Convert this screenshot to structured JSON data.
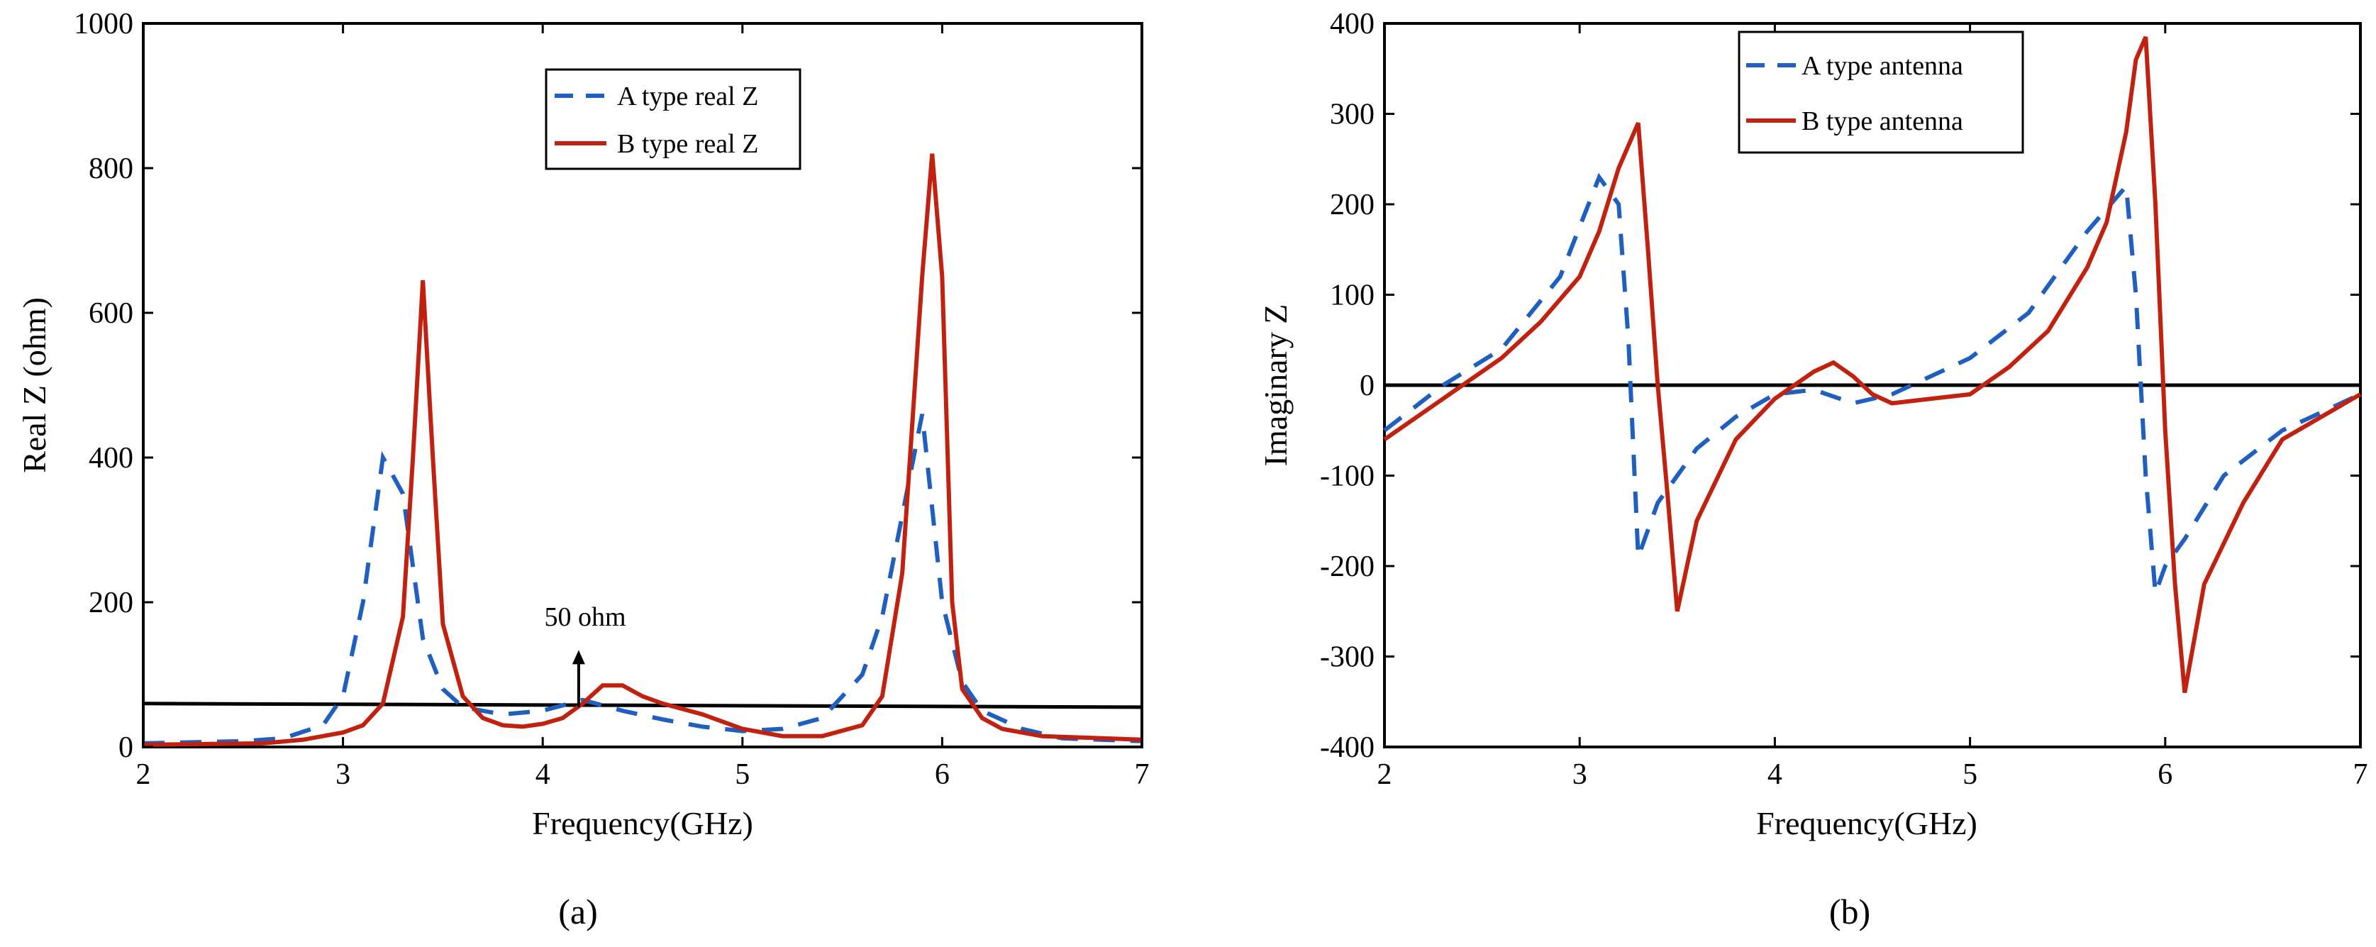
{
  "colors": {
    "series_a": "#1f5fbf",
    "series_b": "#c0220f",
    "axis": "#000000"
  },
  "chart_data": [
    {
      "type": "line",
      "panel_label": "(a)",
      "xlabel": "Frequency(GHz)",
      "ylabel": "Real Z (ohm)",
      "xlim": [
        2,
        7
      ],
      "ylim": [
        0,
        1000
      ],
      "xticks": [
        2,
        3,
        4,
        5,
        6,
        7
      ],
      "yticks": [
        0,
        200,
        400,
        600,
        800,
        1000
      ],
      "legend": {
        "position": "top-center",
        "entries": [
          "A type real Z",
          "B type real Z"
        ]
      },
      "reference_line": {
        "y_start": 60,
        "y_end": 55
      },
      "annotation": {
        "text": "50 ohm",
        "x": 4.18,
        "y_from": 55,
        "y_to": 130
      },
      "series": [
        {
          "name": "A type real Z",
          "style": "dashed",
          "x": [
            2.0,
            2.5,
            2.7,
            2.9,
            3.0,
            3.1,
            3.2,
            3.3,
            3.4,
            3.5,
            3.6,
            3.8,
            4.0,
            4.2,
            4.4,
            4.6,
            4.8,
            5.0,
            5.2,
            5.4,
            5.6,
            5.7,
            5.8,
            5.9,
            6.0,
            6.1,
            6.2,
            6.4,
            6.6,
            7.0
          ],
          "y": [
            5,
            8,
            12,
            30,
            70,
            200,
            400,
            350,
            150,
            80,
            55,
            45,
            50,
            65,
            50,
            38,
            28,
            22,
            25,
            40,
            100,
            180,
            320,
            460,
            200,
            90,
            50,
            25,
            12,
            8
          ]
        },
        {
          "name": "B type real Z",
          "style": "solid",
          "x": [
            2.0,
            2.6,
            2.8,
            3.0,
            3.1,
            3.2,
            3.3,
            3.35,
            3.4,
            3.45,
            3.5,
            3.6,
            3.7,
            3.8,
            3.9,
            4.0,
            4.1,
            4.2,
            4.3,
            4.4,
            4.5,
            4.6,
            4.8,
            5.0,
            5.2,
            5.4,
            5.6,
            5.7,
            5.8,
            5.9,
            5.95,
            6.0,
            6.05,
            6.1,
            6.2,
            6.3,
            6.5,
            7.0
          ],
          "y": [
            3,
            5,
            10,
            20,
            30,
            60,
            180,
            400,
            645,
            400,
            170,
            70,
            40,
            30,
            28,
            32,
            40,
            60,
            85,
            85,
            70,
            60,
            45,
            25,
            15,
            15,
            30,
            70,
            240,
            650,
            820,
            650,
            200,
            80,
            40,
            25,
            15,
            10
          ]
        }
      ]
    },
    {
      "type": "line",
      "panel_label": "(b)",
      "xlabel": "Frequency(GHz)",
      "ylabel": "Imaginary Z",
      "xlim": [
        2,
        7
      ],
      "ylim": [
        -400,
        400
      ],
      "xticks": [
        2,
        3,
        4,
        5,
        6,
        7
      ],
      "yticks": [
        -400,
        -300,
        -200,
        -100,
        0,
        100,
        200,
        300,
        400
      ],
      "legend": {
        "position": "top-left",
        "entries": [
          "A type antenna",
          "B type antenna"
        ]
      },
      "reference_line": {
        "y_start": 0,
        "y_end": 0
      },
      "series": [
        {
          "name": "A type antenna",
          "style": "dashed",
          "x": [
            2.0,
            2.3,
            2.6,
            2.9,
            3.1,
            3.2,
            3.25,
            3.3,
            3.4,
            3.6,
            3.8,
            4.0,
            4.2,
            4.4,
            4.6,
            4.8,
            5.0,
            5.3,
            5.6,
            5.8,
            5.85,
            5.9,
            5.95,
            6.0,
            6.1,
            6.3,
            6.6,
            7.0
          ],
          "y": [
            -50,
            0,
            40,
            120,
            230,
            200,
            50,
            -190,
            -130,
            -70,
            -35,
            -10,
            -5,
            -20,
            -10,
            10,
            30,
            80,
            170,
            220,
            100,
            -100,
            -230,
            -200,
            -170,
            -100,
            -50,
            -10
          ]
        },
        {
          "name": "B type antenna",
          "style": "solid",
          "x": [
            2.0,
            2.2,
            2.4,
            2.6,
            2.8,
            3.0,
            3.1,
            3.2,
            3.3,
            3.35,
            3.4,
            3.45,
            3.5,
            3.6,
            3.8,
            4.0,
            4.2,
            4.3,
            4.4,
            4.5,
            4.6,
            4.8,
            5.0,
            5.2,
            5.4,
            5.6,
            5.7,
            5.8,
            5.85,
            5.9,
            5.95,
            6.0,
            6.05,
            6.1,
            6.2,
            6.4,
            6.6,
            7.0
          ],
          "y": [
            -60,
            -30,
            0,
            30,
            70,
            120,
            170,
            240,
            290,
            150,
            0,
            -120,
            -250,
            -150,
            -60,
            -15,
            15,
            25,
            10,
            -10,
            -20,
            -15,
            -10,
            20,
            60,
            130,
            180,
            280,
            360,
            385,
            200,
            -50,
            -220,
            -340,
            -220,
            -130,
            -60,
            -10
          ]
        }
      ]
    }
  ]
}
